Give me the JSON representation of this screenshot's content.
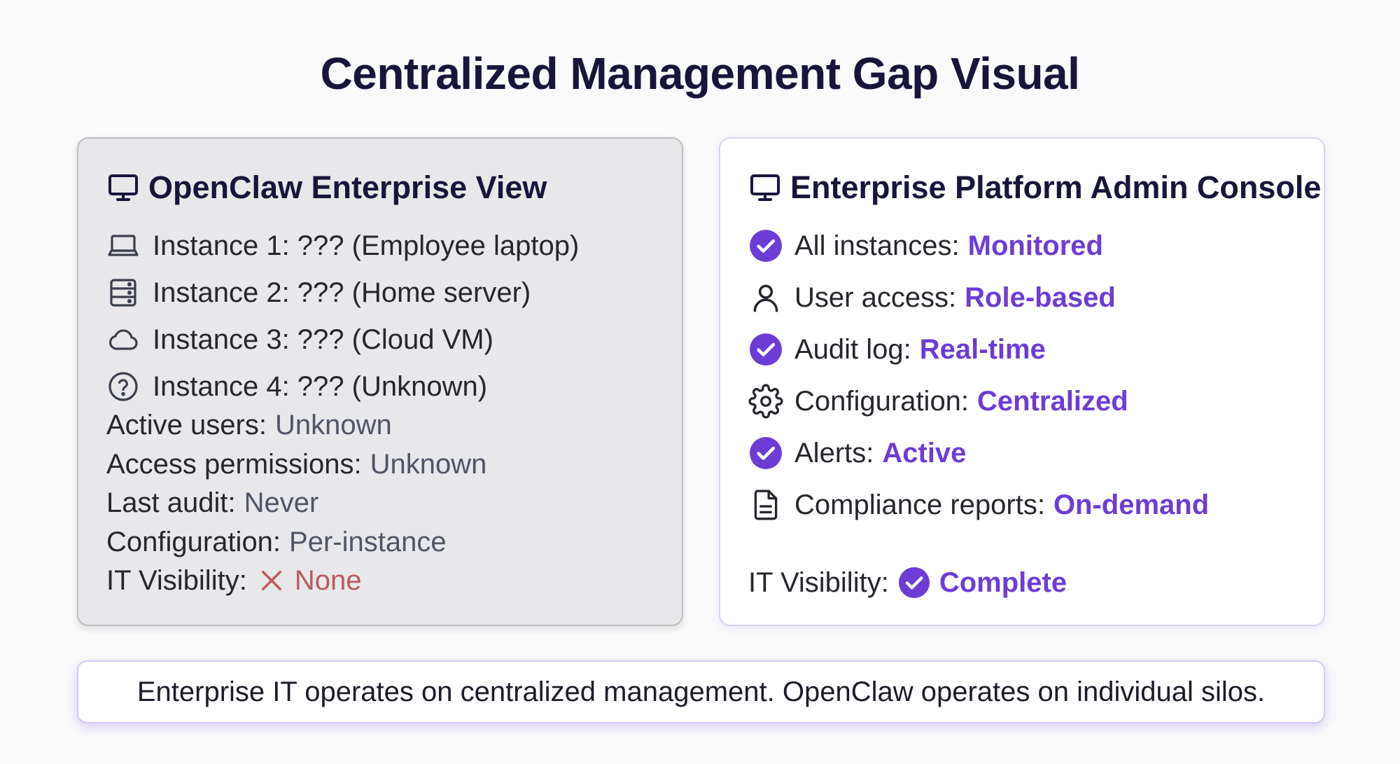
{
  "title": "Centralized Management Gap Visual",
  "left_panel": {
    "heading": "OpenClaw Enterprise View",
    "heading_icon": "monitor-icon",
    "instances": [
      {
        "label": "Instance 1: ??? (Employee laptop)",
        "icon": "laptop-icon"
      },
      {
        "label": "Instance 2: ??? (Home server)",
        "icon": "server-icon"
      },
      {
        "label": "Instance 3: ??? (Cloud VM)",
        "icon": "cloud-icon"
      },
      {
        "label": "Instance 4: ??? (Unknown)",
        "icon": "question-circle-icon"
      }
    ],
    "facts": [
      {
        "label": "Active users:",
        "value": "Unknown"
      },
      {
        "label": "Access permissions:",
        "value": "Unknown"
      },
      {
        "label": "Last audit:",
        "value": "Never"
      },
      {
        "label": "Configuration:",
        "value": "Per-instance"
      }
    ],
    "visibility": {
      "label": "IT Visibility:",
      "value": "None",
      "icon": "x-mark-icon"
    }
  },
  "right_panel": {
    "heading": "Enterprise Platform Admin Console",
    "heading_icon": "monitor-icon",
    "items": [
      {
        "label": "All instances:",
        "value": "Monitored",
        "icon": "check-circle-icon"
      },
      {
        "label": "User access:",
        "value": "Role-based",
        "icon": "user-icon"
      },
      {
        "label": "Audit log:",
        "value": "Real-time",
        "icon": "check-circle-icon"
      },
      {
        "label": "Configuration:",
        "value": "Centralized",
        "icon": "gear-icon"
      },
      {
        "label": "Alerts:",
        "value": "Active",
        "icon": "check-circle-icon"
      },
      {
        "label": "Compliance reports:",
        "value": "On-demand",
        "icon": "document-icon"
      }
    ],
    "visibility": {
      "label": "IT Visibility:",
      "value": "Complete",
      "icon": "check-circle-icon"
    }
  },
  "footer": "Enterprise IT operates on centralized management. OpenClaw operates on individual silos.",
  "colors": {
    "title": "#17163a",
    "accent": "#6d3cd6",
    "muted": "#4f5466",
    "negative": "#b85a5e",
    "left_panel_bg": "#e8e8ea",
    "right_panel_border": "#d9d1f3"
  }
}
